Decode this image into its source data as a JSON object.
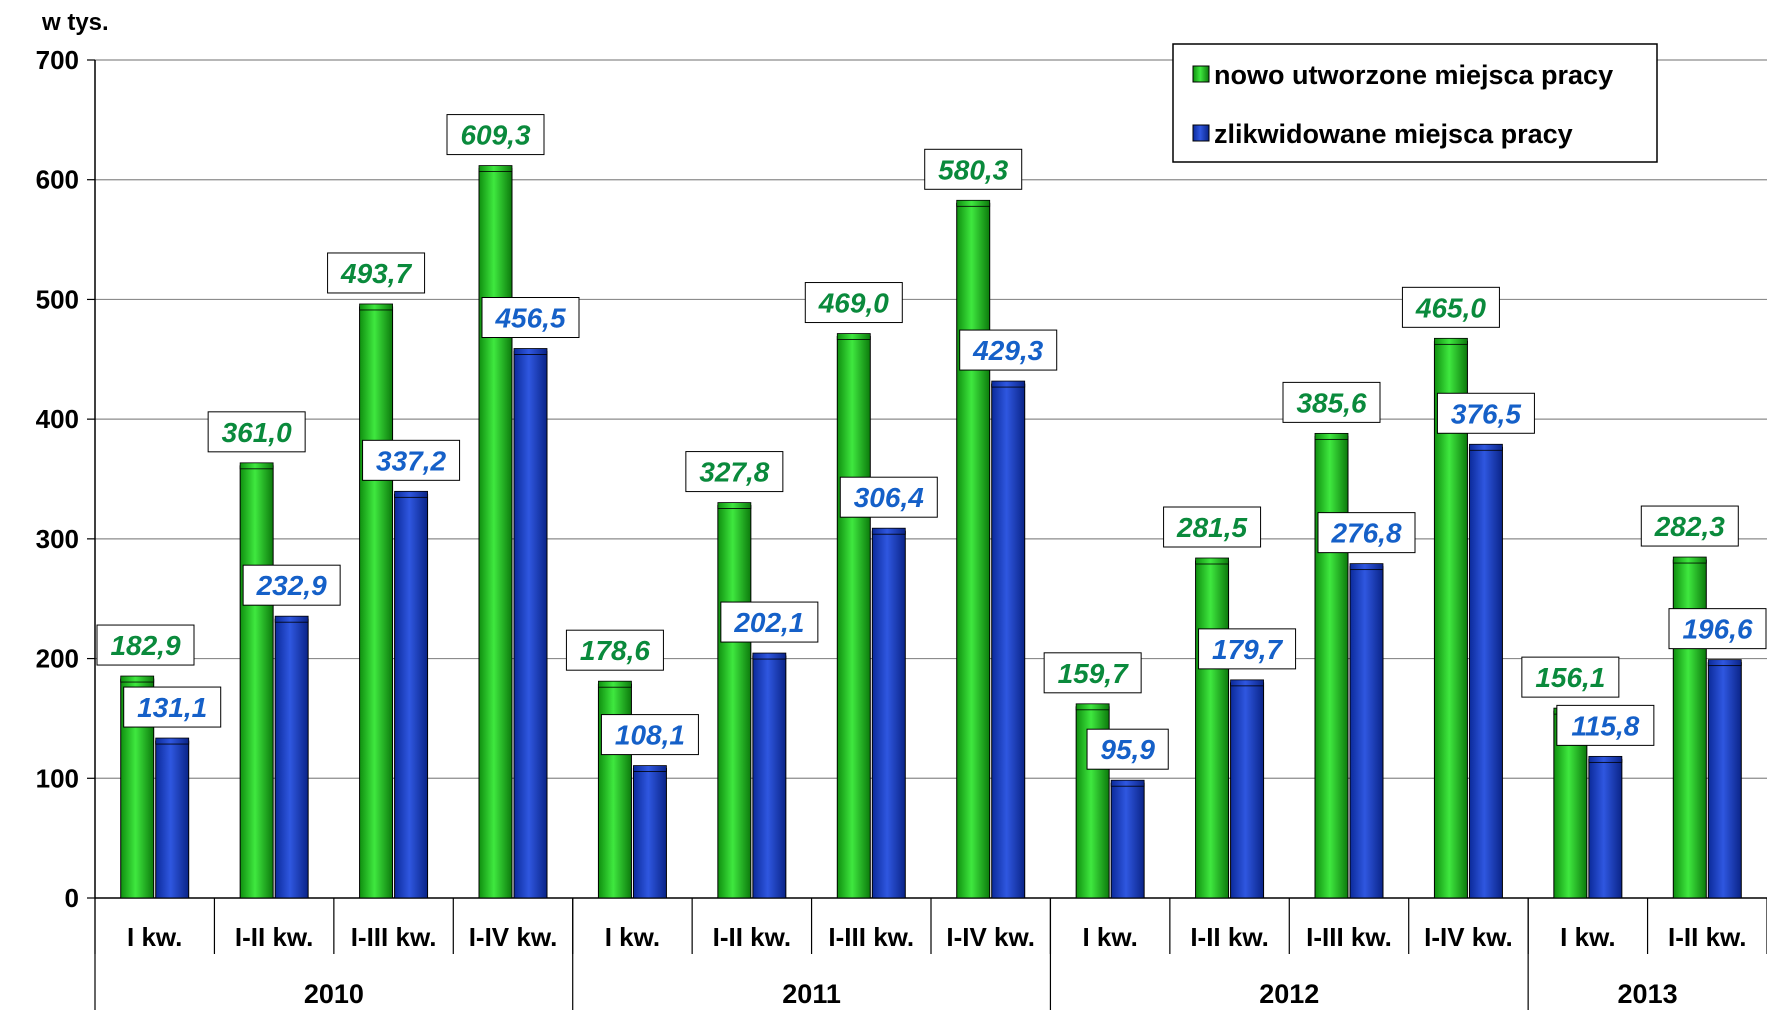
{
  "chart_data": {
    "type": "bar",
    "ylabel": "w tys.",
    "ylim": [
      0,
      700
    ],
    "yticks": [
      0,
      100,
      200,
      300,
      400,
      500,
      600,
      700
    ],
    "grid": true,
    "legend_position": "top-right",
    "categories": [
      "I kw.",
      "I-II kw.",
      "I-III kw.",
      "I-IV kw.",
      "I kw.",
      "I-II kw.",
      "I-III kw.",
      "I-IV kw.",
      "I kw.",
      "I-II kw.",
      "I-III kw.",
      "I-IV kw.",
      "I kw.",
      "I-II kw."
    ],
    "groups": [
      {
        "label": "2010",
        "count": 4
      },
      {
        "label": "2011",
        "count": 4
      },
      {
        "label": "2012",
        "count": 4
      },
      {
        "label": "2013",
        "count": 2
      }
    ],
    "series": [
      {
        "name": "nowo utworzone miejsca pracy",
        "color": "#22c922",
        "label_color": "#0a8a3c",
        "values": [
          182.9,
          361.0,
          493.7,
          609.3,
          178.6,
          327.8,
          469.0,
          580.3,
          159.7,
          281.5,
          385.6,
          465.0,
          156.1,
          282.3
        ],
        "labels": [
          "182,9",
          "361,0",
          "493,7",
          "609,3",
          "178,6",
          "327,8",
          "469,0",
          "580,3",
          "159,7",
          "281,5",
          "385,6",
          "465,0",
          "156,1",
          "282,3"
        ]
      },
      {
        "name": "zlikwidowane miejsca pracy",
        "color": "#1a3fc4",
        "label_color": "#1560c8",
        "values": [
          131.1,
          232.9,
          337.2,
          456.5,
          108.1,
          202.1,
          306.4,
          429.3,
          95.9,
          179.7,
          276.8,
          376.5,
          115.8,
          196.6
        ],
        "labels": [
          "131,1",
          "232,9",
          "337,2",
          "456,5",
          "108,1",
          "202,1",
          "306,4",
          "429,3",
          "95,9",
          "179,7",
          "276,8",
          "376,5",
          "115,8",
          "196,6"
        ]
      }
    ]
  }
}
